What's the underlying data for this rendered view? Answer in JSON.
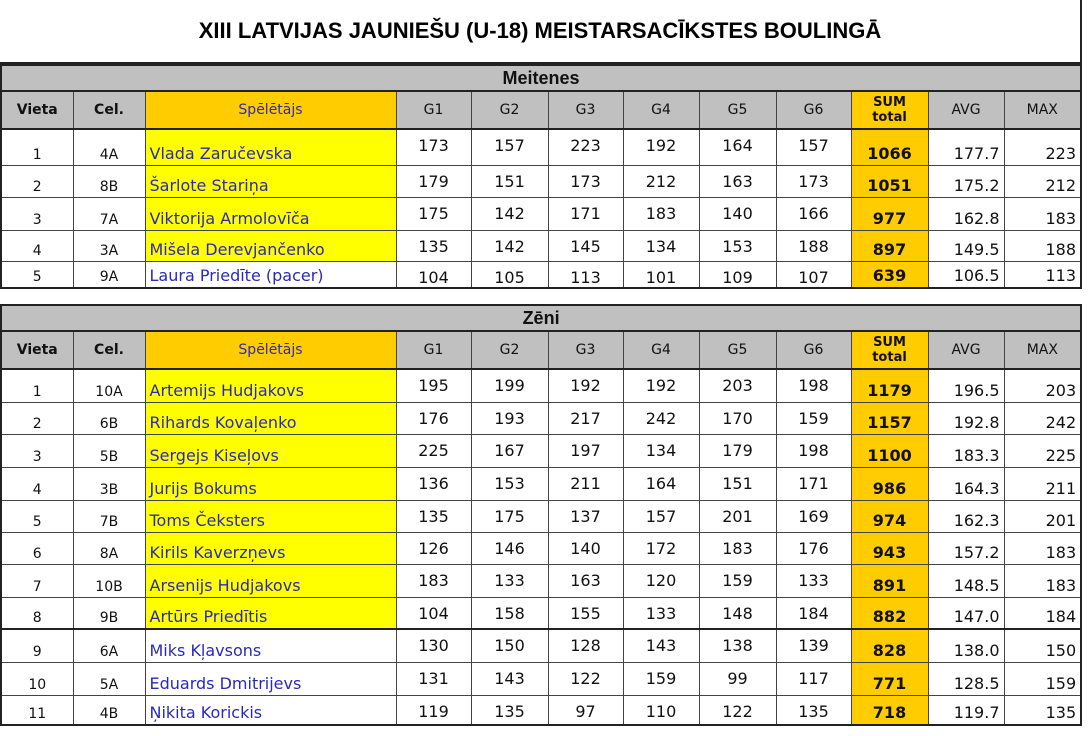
{
  "title": "XIII LATVIJAS JAUNIEŠU (U-18) MEISTARSACĪKSTES BOULINGĀ",
  "columns": [
    "Vieta",
    "Cel.",
    "Spēlētājs",
    "G1",
    "G2",
    "G3",
    "G4",
    "G5",
    "G6",
    "SUM",
    "total",
    "AVG",
    "MAX"
  ],
  "colors": {
    "header_gray": "#c0c0c0",
    "name_header": "#ffcc00",
    "qualified_highlight": "#ffff00",
    "sum_highlight": "#ffcc00",
    "name_text": "#2a2ab8"
  },
  "sections": [
    {
      "title": "Meitenes",
      "rows": [
        {
          "place": "1",
          "lane": "4A",
          "name": "Vlada Zaručevska",
          "games": [
            "173",
            "157",
            "223",
            "192",
            "164",
            "157"
          ],
          "sum": "1066",
          "avg": "177.7",
          "max": "223",
          "highlight": true
        },
        {
          "place": "2",
          "lane": "8B",
          "name": "Šarlote Stariņa",
          "games": [
            "179",
            "151",
            "173",
            "212",
            "163",
            "173"
          ],
          "sum": "1051",
          "avg": "175.2",
          "max": "212",
          "highlight": true
        },
        {
          "place": "3",
          "lane": "7A",
          "name": "Viktorija Armolovīča",
          "games": [
            "175",
            "142",
            "171",
            "183",
            "140",
            "166"
          ],
          "sum": "977",
          "avg": "162.8",
          "max": "183",
          "highlight": true
        },
        {
          "place": "4",
          "lane": "3A",
          "name": "Mišela Derevjančenko",
          "games": [
            "135",
            "142",
            "145",
            "134",
            "153",
            "188"
          ],
          "sum": "897",
          "avg": "149.5",
          "max": "188",
          "highlight": true
        },
        {
          "place": "5",
          "lane": "9A",
          "name": "Laura Priedīte (pacer)",
          "games": [
            "104",
            "105",
            "113",
            "101",
            "109",
            "107"
          ],
          "sum": "639",
          "avg": "106.5",
          "max": "113",
          "highlight": false
        }
      ]
    },
    {
      "title": "Zēni",
      "rows": [
        {
          "place": "1",
          "lane": "10A",
          "name": "Artemijs Hudjakovs",
          "games": [
            "195",
            "199",
            "192",
            "192",
            "203",
            "198"
          ],
          "sum": "1179",
          "avg": "196.5",
          "max": "203",
          "highlight": true
        },
        {
          "place": "2",
          "lane": "6B",
          "name": "Rihards Kovaļenko",
          "games": [
            "176",
            "193",
            "217",
            "242",
            "170",
            "159"
          ],
          "sum": "1157",
          "avg": "192.8",
          "max": "242",
          "highlight": true
        },
        {
          "place": "3",
          "lane": "5B",
          "name": "Sergejs Kiseļovs",
          "games": [
            "225",
            "167",
            "197",
            "134",
            "179",
            "198"
          ],
          "sum": "1100",
          "avg": "183.3",
          "max": "225",
          "highlight": true
        },
        {
          "place": "4",
          "lane": "3B",
          "name": "Jurijs Bokums",
          "games": [
            "136",
            "153",
            "211",
            "164",
            "151",
            "171"
          ],
          "sum": "986",
          "avg": "164.3",
          "max": "211",
          "highlight": true
        },
        {
          "place": "5",
          "lane": "7B",
          "name": "Toms Čeksters",
          "games": [
            "135",
            "175",
            "137",
            "157",
            "201",
            "169"
          ],
          "sum": "974",
          "avg": "162.3",
          "max": "201",
          "highlight": true
        },
        {
          "place": "6",
          "lane": "8A",
          "name": "Kirils Kaverzņevs",
          "games": [
            "126",
            "146",
            "140",
            "172",
            "183",
            "176"
          ],
          "sum": "943",
          "avg": "157.2",
          "max": "183",
          "highlight": true
        },
        {
          "place": "7",
          "lane": "10B",
          "name": "Arsenijs Hudjakovs",
          "games": [
            "183",
            "133",
            "163",
            "120",
            "159",
            "133"
          ],
          "sum": "891",
          "avg": "148.5",
          "max": "183",
          "highlight": true
        },
        {
          "place": "8",
          "lane": "9B",
          "name": "Artūrs Priedītis",
          "games": [
            "104",
            "158",
            "155",
            "133",
            "148",
            "184"
          ],
          "sum": "882",
          "avg": "147.0",
          "max": "184",
          "highlight": true
        },
        {
          "place": "9",
          "lane": "6A",
          "name": "Miks Kļavsons",
          "games": [
            "130",
            "150",
            "128",
            "143",
            "138",
            "139"
          ],
          "sum": "828",
          "avg": "138.0",
          "max": "150",
          "highlight": false
        },
        {
          "place": "10",
          "lane": "5A",
          "name": "Eduards Dmitrijevs",
          "games": [
            "131",
            "143",
            "122",
            "159",
            "99",
            "117"
          ],
          "sum": "771",
          "avg": "128.5",
          "max": "159",
          "highlight": false
        },
        {
          "place": "11",
          "lane": "4B",
          "name": "Ņikita Korickis",
          "games": [
            "119",
            "135",
            "97",
            "110",
            "122",
            "135"
          ],
          "sum": "718",
          "avg": "119.7",
          "max": "135",
          "highlight": false
        }
      ]
    }
  ]
}
